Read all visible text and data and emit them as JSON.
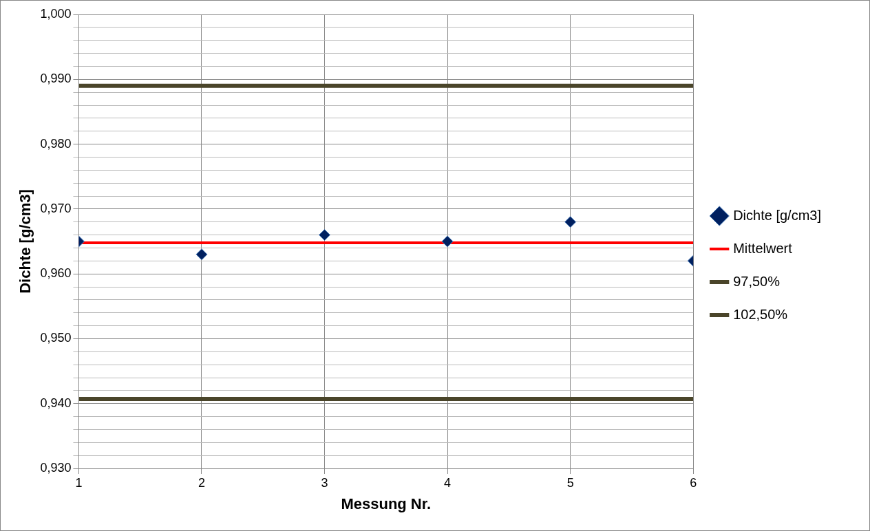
{
  "chart_data": {
    "type": "scatter",
    "xlabel": "Messung Nr.",
    "ylabel": "Dichte [g/cm3]",
    "xlim": [
      1,
      6
    ],
    "xticks": [
      1,
      2,
      3,
      4,
      5,
      6
    ],
    "ylim": [
      0.93,
      1.0
    ],
    "yticks": [
      {
        "value": 0.93,
        "label": "0,930"
      },
      {
        "value": 0.932,
        "label": null
      },
      {
        "value": 0.934,
        "label": null
      },
      {
        "value": 0.936,
        "label": null
      },
      {
        "value": 0.938,
        "label": null
      },
      {
        "value": 0.94,
        "label": "0,940"
      },
      {
        "value": 0.942,
        "label": null
      },
      {
        "value": 0.944,
        "label": null
      },
      {
        "value": 0.946,
        "label": null
      },
      {
        "value": 0.948,
        "label": null
      },
      {
        "value": 0.95,
        "label": "0,950"
      },
      {
        "value": 0.952,
        "label": null
      },
      {
        "value": 0.954,
        "label": null
      },
      {
        "value": 0.956,
        "label": null
      },
      {
        "value": 0.958,
        "label": null
      },
      {
        "value": 0.96,
        "label": "0,960"
      },
      {
        "value": 0.962,
        "label": null
      },
      {
        "value": 0.964,
        "label": null
      },
      {
        "value": 0.966,
        "label": null
      },
      {
        "value": 0.968,
        "label": null
      },
      {
        "value": 0.97,
        "label": "0,970"
      },
      {
        "value": 0.972,
        "label": null
      },
      {
        "value": 0.974,
        "label": null
      },
      {
        "value": 0.976,
        "label": null
      },
      {
        "value": 0.978,
        "label": null
      },
      {
        "value": 0.98,
        "label": "0,980"
      },
      {
        "value": 0.982,
        "label": null
      },
      {
        "value": 0.984,
        "label": null
      },
      {
        "value": 0.986,
        "label": null
      },
      {
        "value": 0.988,
        "label": null
      },
      {
        "value": 0.99,
        "label": "0,990"
      },
      {
        "value": 0.992,
        "label": null
      },
      {
        "value": 0.994,
        "label": null
      },
      {
        "value": 0.996,
        "label": null
      },
      {
        "value": 0.998,
        "label": null
      },
      {
        "value": 1.0,
        "label": "1,000"
      }
    ],
    "grid": true,
    "legend": "right",
    "series": [
      {
        "name": "Dichte [g/cm3]",
        "marker": "diamond",
        "color": "#002060",
        "x": [
          1,
          2,
          3,
          4,
          5,
          6
        ],
        "values": [
          0.965,
          0.963,
          0.966,
          0.965,
          0.968,
          0.962
        ]
      },
      {
        "name": "Mittelwert",
        "type": "line",
        "marker": "none",
        "color": "#ff0000",
        "x": [
          1,
          6
        ],
        "values": [
          0.9648,
          0.9648
        ]
      },
      {
        "name": "97,50%",
        "type": "line",
        "marker": "none",
        "color": "#4a452a",
        "x": [
          1,
          6
        ],
        "values": [
          0.9407,
          0.9407
        ]
      },
      {
        "name": "102,50%",
        "type": "line",
        "marker": "none",
        "color": "#4a452a",
        "x": [
          1,
          6
        ],
        "values": [
          0.989,
          0.989
        ]
      }
    ]
  }
}
